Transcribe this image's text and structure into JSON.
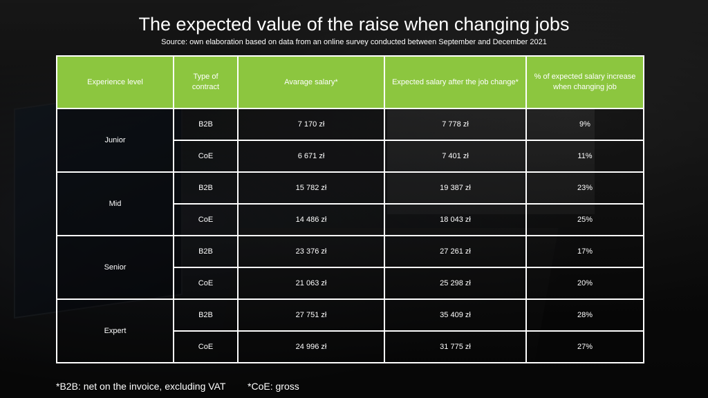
{
  "title": "The expected value of the raise when changing jobs",
  "subtitle": "Source: own elaboration based on data from an online survey conducted between September and December 2021",
  "table": {
    "headers": [
      "Experience level",
      "Type of contract",
      "Avarage salary*",
      "Expected salary after the job change*",
      "% of expected salary increase when changing job"
    ],
    "groups": [
      {
        "level": "Junior",
        "rows": [
          {
            "contract": "B2B",
            "avg": "7 170 zł",
            "expected": "7 778 zł",
            "increase": "9%"
          },
          {
            "contract": "CoE",
            "avg": "6 671 zł",
            "expected": "7 401 zł",
            "increase": "11%"
          }
        ]
      },
      {
        "level": "Mid",
        "rows": [
          {
            "contract": "B2B",
            "avg": "15 782 zł",
            "expected": "19 387 zł",
            "increase": "23%"
          },
          {
            "contract": "CoE",
            "avg": "14 486 zł",
            "expected": "18 043 zł",
            "increase": "25%"
          }
        ]
      },
      {
        "level": "Senior",
        "rows": [
          {
            "contract": "B2B",
            "avg": "23 376 zł",
            "expected": "27 261 zł",
            "increase": "17%"
          },
          {
            "contract": "CoE",
            "avg": "21 063 zł",
            "expected": "25 298 zł",
            "increase": "20%"
          }
        ]
      },
      {
        "level": "Expert",
        "rows": [
          {
            "contract": "B2B",
            "avg": "27 751 zł",
            "expected": "35 409 zł",
            "increase": "28%"
          },
          {
            "contract": "CoE",
            "avg": "24 996 zł",
            "expected": "31 775 zł",
            "increase": "27%"
          }
        ]
      }
    ]
  },
  "footnotes": {
    "b2b": "*B2B: net on the invoice, excluding VAT",
    "coe": "*CoE: gross"
  },
  "colors": {
    "header_bg": "#8cc63f",
    "border": "#ffffff",
    "text": "#ffffff"
  }
}
